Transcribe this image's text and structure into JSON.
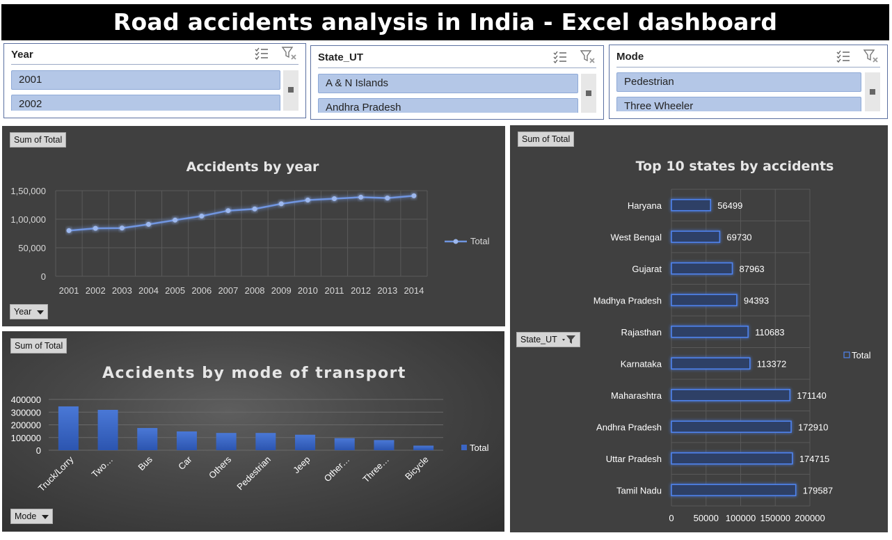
{
  "dashboard": {
    "title": "Road accidents analysis in India - Excel dashboard"
  },
  "slicers": [
    {
      "key": "year",
      "title": "Year",
      "items": [
        "2001",
        "2002"
      ]
    },
    {
      "key": "state",
      "title": "State_UT",
      "items": [
        "A & N Islands",
        "Andhra Pradesh"
      ]
    },
    {
      "key": "mode",
      "title": "Mode",
      "items": [
        "Pedestrian",
        "Three Wheeler"
      ]
    }
  ],
  "field_buttons": {
    "year_value": "Sum of Total",
    "year_axis": "Year",
    "mode_value": "Sum of Total",
    "mode_axis": "Mode",
    "states_value": "Sum of Total",
    "states_axis": "State_UT"
  },
  "colors": {
    "accent": "#4472c4",
    "line": "#6f95e0",
    "panel": "#404040",
    "bar_fill": "#3b65c4"
  },
  "chart_data": [
    {
      "type": "line",
      "title": "Accidents by year",
      "x": [
        "2001",
        "2002",
        "2003",
        "2004",
        "2005",
        "2006",
        "2007",
        "2008",
        "2009",
        "2010",
        "2011",
        "2012",
        "2013",
        "2014"
      ],
      "series": [
        {
          "name": "Total",
          "values": [
            80000,
            84000,
            84500,
            91000,
            98500,
            105500,
            115000,
            118000,
            127000,
            133500,
            136000,
            138500,
            137000,
            141000
          ]
        }
      ],
      "ylim": [
        0,
        150000
      ],
      "yticks": [
        "0",
        "50,000",
        "1,00,000",
        "1,50,000"
      ],
      "grid": true,
      "legend": "right"
    },
    {
      "type": "bar",
      "title": "Accidents by mode of transport",
      "categories": [
        "Truck/Lorry",
        "Two…",
        "Bus",
        "Car",
        "Others",
        "Pedestrian",
        "Jeep",
        "Other…",
        "Three…",
        "Bicycle"
      ],
      "series": [
        {
          "name": "Total",
          "values": [
            345000,
            318000,
            175000,
            148000,
            136000,
            136000,
            122000,
            95000,
            80000,
            36000
          ]
        }
      ],
      "ylim": [
        0,
        400000
      ],
      "yticks": [
        "0",
        "100000",
        "200000",
        "300000",
        "400000"
      ],
      "grid": true,
      "legend": "right"
    },
    {
      "type": "bar",
      "orientation": "horizontal",
      "title": "Top 10 states by accidents",
      "categories": [
        "Haryana",
        "West Bengal",
        "Gujarat",
        "Madhya Pradesh",
        "Rajasthan",
        "Karnataka",
        "Maharashtra",
        "Andhra Pradesh",
        "Uttar Pradesh",
        "Tamil Nadu"
      ],
      "series": [
        {
          "name": "Total",
          "values": [
            56499,
            69730,
            87963,
            94393,
            110683,
            113372,
            171140,
            172910,
            174715,
            179587
          ]
        }
      ],
      "data_labels": [
        "56499",
        "69730",
        "87963",
        "94393",
        "110683",
        "113372",
        "171140",
        "172910",
        "174715",
        "179587"
      ],
      "xlim": [
        0,
        200000
      ],
      "xticks": [
        "0",
        "50000",
        "100000",
        "150000",
        "200000"
      ],
      "grid": true,
      "legend": "right"
    }
  ]
}
